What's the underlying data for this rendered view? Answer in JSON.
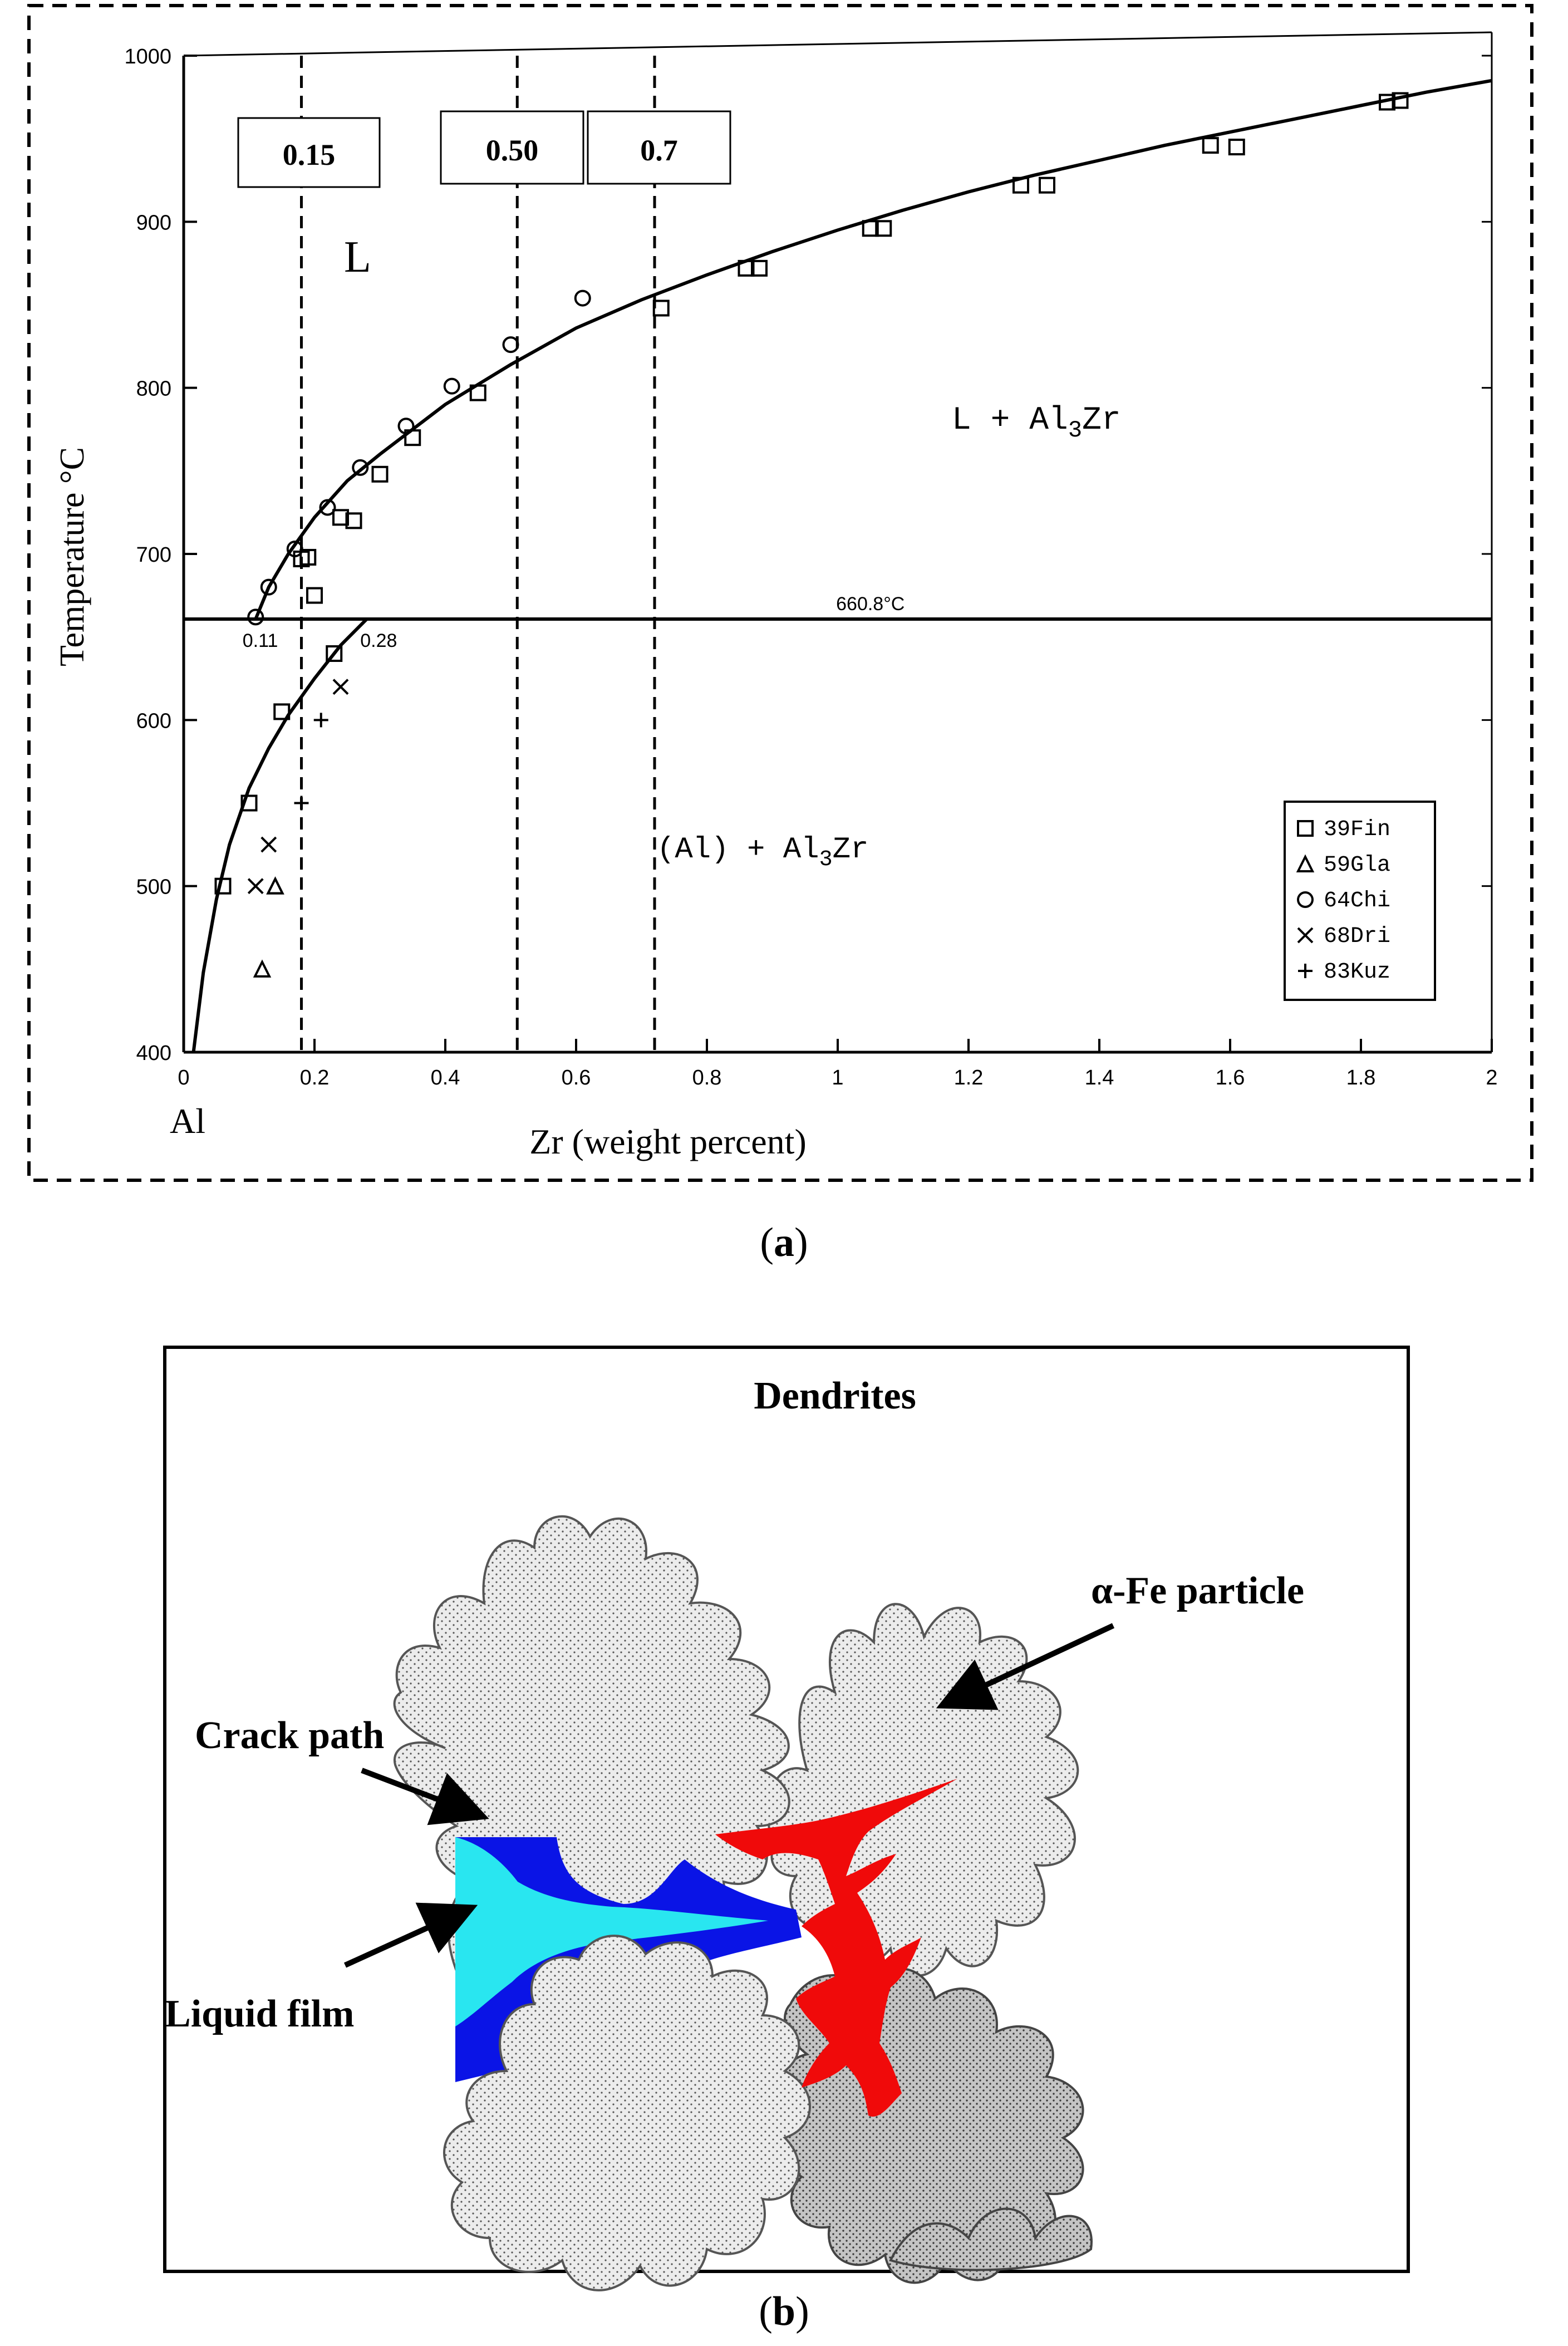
{
  "figure_a": {
    "caption_open": "(",
    "caption_letter": "a",
    "caption_close": ")",
    "chart_data": {
      "type": "scatter",
      "xlabel": "Zr (weight percent)",
      "ylabel": "Temperature °C",
      "xlim": [
        0,
        2
      ],
      "ylim": [
        400,
        1000
      ],
      "x_ticks": [
        0,
        0.2,
        0.4,
        0.6,
        0.8,
        1,
        1.2,
        1.4,
        1.6,
        1.8,
        2
      ],
      "x_tick_labels": [
        "0",
        "0.2",
        "0.4",
        "0.6",
        "0.8",
        "1",
        "1.2",
        "1.4",
        "1.6",
        "1.8",
        "2"
      ],
      "y_ticks": [
        400,
        500,
        600,
        700,
        800,
        900,
        1000
      ],
      "y_tick_labels": [
        "400",
        "500",
        "600",
        "700",
        "800",
        "900",
        "1000"
      ],
      "origin_label": "Al",
      "liquidus_curve": {
        "x": [
          0.11,
          0.13,
          0.16,
          0.2,
          0.25,
          0.3,
          0.4,
          0.5,
          0.6,
          0.7,
          0.8,
          0.9,
          1.0,
          1.1,
          1.2,
          1.3,
          1.4,
          1.5,
          1.6,
          1.7,
          1.8,
          1.9,
          2.0
        ],
        "y": [
          660.8,
          680,
          700,
          722,
          744,
          760,
          790,
          814,
          836,
          853,
          868,
          882,
          895,
          907,
          918,
          928,
          937,
          946,
          954,
          962,
          970,
          978,
          985
        ]
      },
      "solvus_curve": {
        "x": [
          0.015,
          0.03,
          0.05,
          0.07,
          0.1,
          0.13,
          0.16,
          0.2,
          0.24,
          0.28
        ],
        "y": [
          400,
          448,
          492,
          525,
          559,
          583,
          603,
          625,
          645,
          660.8
        ]
      },
      "eutectic_line": {
        "y": 660.8,
        "label": "660.8°C",
        "label_x": 1.05,
        "left_label": "0.11",
        "right_label": "0.28"
      },
      "composition_lines": [
        {
          "x": 0.18,
          "label": "0.15"
        },
        {
          "x": 0.51,
          "label": "0.50"
        },
        {
          "x": 0.72,
          "label": "0.7"
        }
      ],
      "region_labels": {
        "liquid": "L",
        "liquid_plus": "L + Al",
        "liquid_plus_sub": "3",
        "liquid_plus_end": "Zr",
        "solid": "(Al) + Al",
        "solid_sub": "3",
        "solid_end": "Zr"
      },
      "series": [
        {
          "name": "39Fin",
          "marker": "square",
          "x": [
            0.06,
            0.1,
            0.15,
            0.18,
            0.19,
            0.2,
            0.23,
            0.24,
            0.26,
            0.3,
            0.35,
            0.45,
            0.73,
            0.86,
            0.88,
            1.05,
            1.07,
            1.28,
            1.32,
            1.57,
            1.61,
            1.84,
            1.86
          ],
          "y": [
            500,
            550,
            605,
            697,
            698,
            675,
            640,
            722,
            720,
            748,
            770,
            797,
            848,
            872,
            872,
            896,
            896,
            922,
            922,
            946,
            945,
            972,
            973
          ]
        },
        {
          "name": "59Gla",
          "marker": "triangle",
          "x": [
            0.12,
            0.14,
            0.14
          ],
          "y": [
            450,
            500,
            500
          ]
        },
        {
          "name": "64Chi",
          "marker": "circle",
          "x": [
            0.11,
            0.13,
            0.17,
            0.22,
            0.27,
            0.34,
            0.41,
            0.5,
            0.61
          ],
          "y": [
            662,
            680,
            703,
            728,
            752,
            777,
            801,
            826,
            854
          ]
        },
        {
          "name": "68Dri",
          "marker": "cross",
          "x": [
            0.11,
            0.13,
            0.24
          ],
          "y": [
            500,
            525,
            620
          ]
        },
        {
          "name": "83Kuz",
          "marker": "plus",
          "x": [
            0.18,
            0.21
          ],
          "y": [
            550,
            600
          ]
        }
      ],
      "legend": "bottom-right"
    }
  },
  "figure_b": {
    "caption_open": "(",
    "caption_letter": "b",
    "caption_close": ")",
    "labels": {
      "dendrites": "Dendrites",
      "alpha_fe": "α-Fe particle",
      "crack_path": "Crack path",
      "liquid_film": "Liquid film"
    },
    "colors": {
      "dendrite_light": "#ececec",
      "dendrite_dark": "#c4c4c4",
      "liquid_film": "#0a14e6",
      "crack_path": "#29e6f0",
      "alpha_fe": "#f00a0a"
    }
  }
}
